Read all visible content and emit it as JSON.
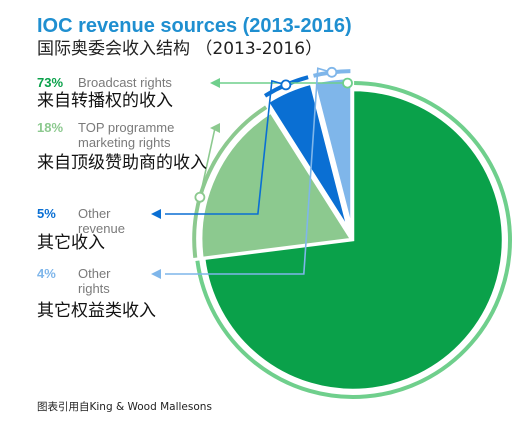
{
  "chart_data": {
    "type": "pie",
    "title": "IOC revenue sources (2013-2016)",
    "subtitle": "国际奥委会收入结构 （2013-2016）",
    "slices": [
      {
        "value": 73,
        "pct_label": "73%",
        "label_lines": [
          "Broadcast rights"
        ],
        "label_zh": "来自转播权的收入",
        "color": "#0aa14a",
        "ring_color": "#6fcf8c"
      },
      {
        "value": 18,
        "pct_label": "18%",
        "label_lines": [
          "TOP programme",
          "marketing rights"
        ],
        "label_zh": "来自顶级赞助商的收入",
        "color": "#8cc98f",
        "ring_color": "#8cc98f"
      },
      {
        "value": 5,
        "pct_label": "5%",
        "label_lines": [
          "Other",
          "revenue"
        ],
        "label_zh": "其它收入",
        "color": "#0a6fd3",
        "ring_color": "#0a6fd3"
      },
      {
        "value": 4,
        "pct_label": "4%",
        "label_lines": [
          "Other",
          "rights"
        ],
        "label_zh": "其它权益类收入",
        "color": "#7fb6ea",
        "ring_color": "#7fb6ea"
      }
    ],
    "source": "图表引用自King & Wood Mallesons"
  }
}
